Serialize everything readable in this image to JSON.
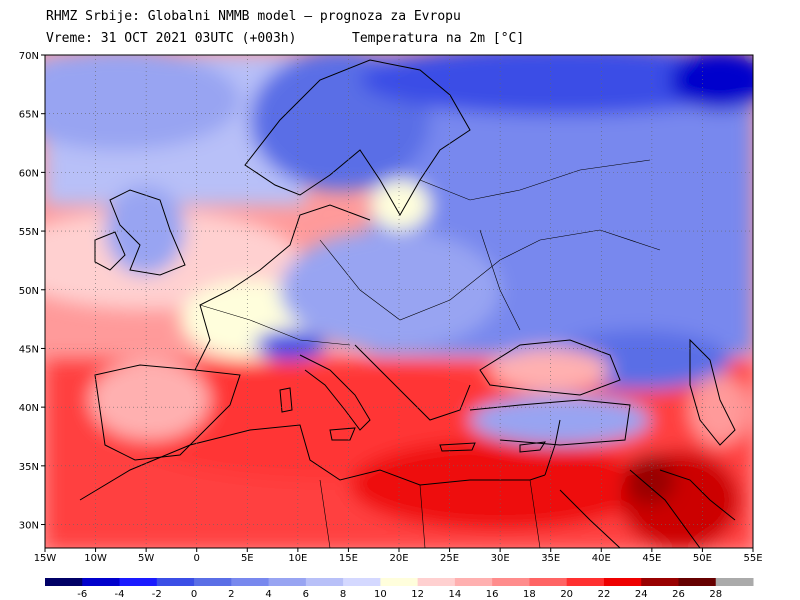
{
  "header": {
    "line1": "RHMZ Srbije: Globalni NMMB model — prognoza za Evropu",
    "line2_left": "Vreme: 31 OCT 2021 03UTC (+003h)",
    "line2_right": "Temperatura na 2m [°C]"
  },
  "map": {
    "lat_labels": [
      "70N",
      "65N",
      "60N",
      "55N",
      "50N",
      "45N",
      "40N",
      "35N",
      "30N"
    ],
    "lat_values": [
      70,
      65,
      60,
      55,
      50,
      45,
      40,
      35,
      30
    ],
    "lon_labels": [
      "15W",
      "10W",
      "5W",
      "0",
      "5E",
      "10E",
      "15E",
      "20E",
      "25E",
      "30E",
      "35E",
      "40E",
      "45E",
      "50E",
      "55E"
    ],
    "lon_values": [
      -15,
      -10,
      -5,
      0,
      5,
      10,
      15,
      20,
      25,
      30,
      35,
      40,
      45,
      50,
      55
    ],
    "lon_range": [
      -15,
      55
    ],
    "lat_range": [
      28,
      70
    ]
  },
  "legend": {
    "labels": [
      "-6",
      "-4",
      "-2",
      "0",
      "2",
      "4",
      "6",
      "8",
      "10",
      "12",
      "14",
      "16",
      "18",
      "20",
      "22",
      "24",
      "26",
      "28"
    ],
    "colors": [
      "#000066",
      "#0000cc",
      "#1a1aff",
      "#3b4ee6",
      "#5a6ee6",
      "#7888ee",
      "#98a4f2",
      "#b8c0f8",
      "#d4d8ff",
      "#fffedc",
      "#ffd0d0",
      "#ffb0b0",
      "#ff8c8c",
      "#ff6464",
      "#ff3030",
      "#ee0000",
      "#990000",
      "#660000",
      "#aaaaaa"
    ]
  }
}
